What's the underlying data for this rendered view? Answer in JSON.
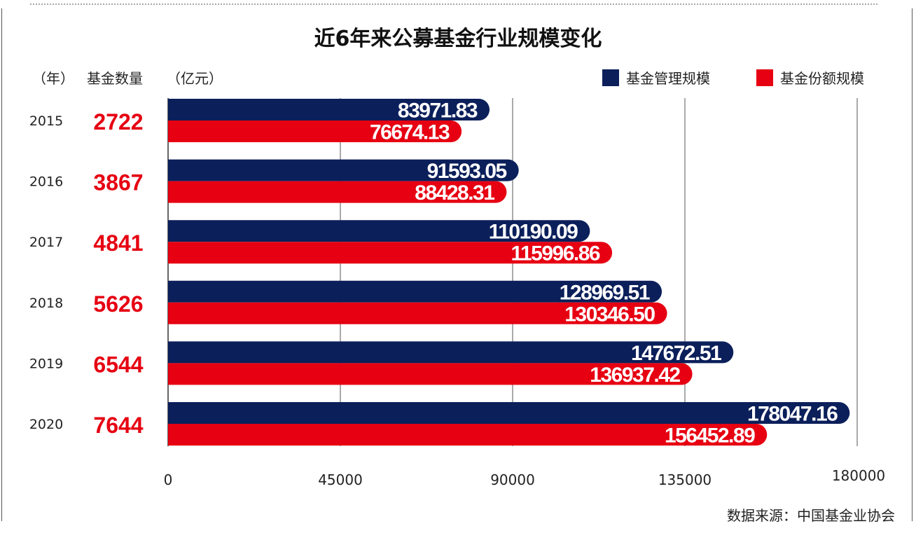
{
  "title": "近6年来公募基金行业规模变化",
  "headers": {
    "year": "（年）",
    "count": "基金数量",
    "unit": "（亿元）"
  },
  "legend": [
    {
      "label": "基金管理规模",
      "color": "#0b1f5a"
    },
    {
      "label": "基金份额规模",
      "color": "#e60012"
    }
  ],
  "source": "数据来源：中国基金业协会",
  "chart_data": {
    "type": "bar",
    "orientation": "horizontal",
    "categories": [
      "2015",
      "2016",
      "2017",
      "2018",
      "2019",
      "2020"
    ],
    "fund_counts": [
      "2722",
      "3867",
      "4841",
      "5626",
      "6544",
      "7644"
    ],
    "series": [
      {
        "name": "基金管理规模",
        "color": "#0b1f5a",
        "values": [
          83971.83,
          91593.05,
          110190.09,
          128969.51,
          147672.51,
          178047.16
        ],
        "labels": [
          "83971.83",
          "91593.05",
          "110190.09",
          "128969.51",
          "147672.51",
          "178047.16"
        ]
      },
      {
        "name": "基金份额规模",
        "color": "#e60012",
        "values": [
          76674.13,
          88428.31,
          115996.86,
          130346.5,
          136937.42,
          156452.89
        ],
        "labels": [
          "76674.13",
          "88428.31",
          "115996.86",
          "130346.50",
          "136937.42",
          "156452.89"
        ]
      }
    ],
    "xlim": [
      0,
      180000
    ],
    "xticks": [
      0,
      45000,
      90000,
      135000,
      180000
    ],
    "xtick_labels": [
      "0",
      "45000",
      "90000",
      "135000",
      "180000"
    ],
    "grid": true,
    "legend_position": "top-right"
  }
}
